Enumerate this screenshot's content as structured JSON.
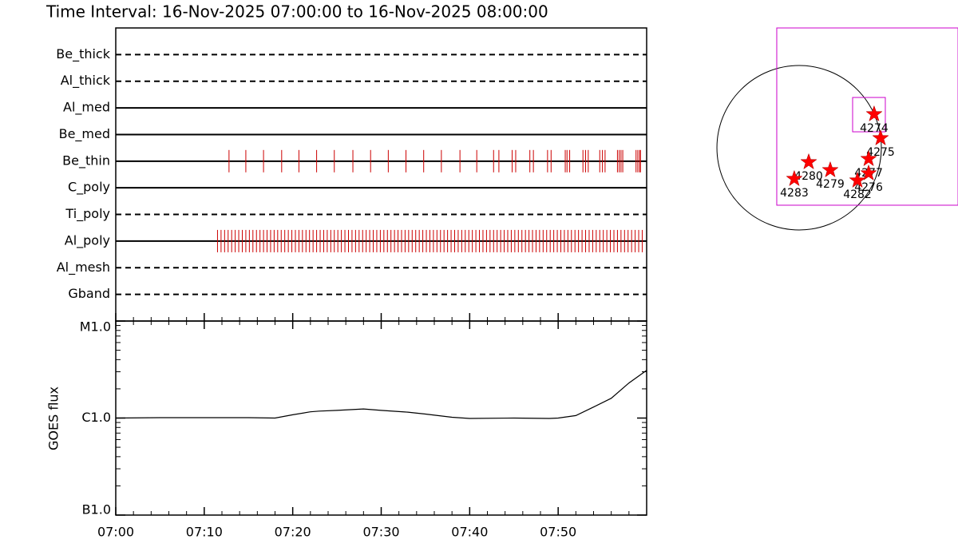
{
  "chart_data": [
    {
      "type": "timeline",
      "title": "Time Interval: 16-Nov-2025 07:00:00 to 16-Nov-2025 08:00:00",
      "xlim": [
        0,
        60
      ],
      "tick_color": "#cc0000",
      "rows": [
        {
          "name": "Be_thick",
          "style": "dashed",
          "times": []
        },
        {
          "name": "Al_thick",
          "style": "dashed",
          "times": []
        },
        {
          "name": "Al_med",
          "style": "solid",
          "times": []
        },
        {
          "name": "Be_med",
          "style": "solid",
          "times": []
        },
        {
          "name": "Be_thin",
          "style": "solid",
          "times": [
            12.8,
            14.7,
            16.7,
            18.75,
            20.7,
            22.7,
            24.7,
            26.8,
            28.8,
            30.8,
            32.8,
            34.8,
            36.8,
            38.9,
            40.8,
            42.7,
            43.3,
            44.8,
            45.2,
            46.8,
            47.2,
            48.8,
            49.2,
            50.8,
            51.0,
            51.3,
            52.8,
            53.1,
            53.4,
            54.7,
            55.0,
            55.3,
            56.7,
            56.9,
            57.1,
            57.3,
            58.8,
            59.0,
            59.2,
            59.3
          ]
        },
        {
          "name": "C_poly",
          "style": "solid",
          "times": []
        },
        {
          "name": "Ti_poly",
          "style": "dashed",
          "times": []
        },
        {
          "name": "Al_poly",
          "style": "solid",
          "times": [
            11.5,
            11.9,
            12.3,
            12.7,
            13.1,
            13.5,
            13.9,
            14.3,
            14.7,
            15.1,
            15.5,
            15.9,
            16.3,
            16.7,
            17.1,
            17.5,
            17.9,
            18.3,
            18.7,
            19.1,
            19.5,
            19.9,
            20.3,
            20.7,
            21.1,
            21.5,
            21.9,
            22.3,
            22.7,
            23.1,
            23.5,
            23.9,
            24.3,
            24.7,
            25.1,
            25.5,
            25.9,
            26.3,
            26.7,
            27.1,
            27.5,
            27.9,
            28.3,
            28.7,
            29.1,
            29.5,
            29.9,
            30.3,
            30.7,
            31.1,
            31.5,
            31.9,
            32.3,
            32.7,
            33.1,
            33.5,
            33.9,
            34.3,
            34.7,
            35.1,
            35.5,
            35.9,
            36.3,
            36.7,
            37.1,
            37.5,
            37.9,
            38.3,
            38.7,
            39.1,
            39.5,
            39.9,
            40.3,
            40.7,
            41.1,
            41.5,
            41.9,
            42.3,
            42.7,
            43.1,
            43.5,
            43.9,
            44.3,
            44.7,
            45.1,
            45.5,
            45.9,
            46.3,
            46.7,
            47.1,
            47.5,
            47.9,
            48.3,
            48.7,
            49.1,
            49.5,
            49.9,
            50.3,
            50.7,
            51.1,
            51.5,
            51.9,
            52.3,
            52.7,
            53.1,
            53.5,
            53.9,
            54.3,
            54.7,
            55.1,
            55.5,
            55.9,
            56.3,
            56.7,
            57.1,
            57.5,
            57.9,
            58.3,
            58.7,
            59.1,
            59.5
          ]
        },
        {
          "name": "Al_mesh",
          "style": "dashed",
          "times": []
        },
        {
          "name": "Gband",
          "style": "dashed",
          "times": []
        }
      ]
    },
    {
      "type": "line",
      "ylabel": "GOES flux",
      "log": true,
      "color": "#000000",
      "xlim": [
        0,
        60
      ],
      "xticks": [
        {
          "value": 0,
          "label": "07:00"
        },
        {
          "value": 10,
          "label": "07:10"
        },
        {
          "value": 20,
          "label": "07:20"
        },
        {
          "value": 30,
          "label": "07:30"
        },
        {
          "value": 40,
          "label": "07:40"
        },
        {
          "value": 50,
          "label": "07:50"
        }
      ],
      "xminorticks": [
        2,
        4,
        6,
        8,
        12,
        14,
        16,
        18,
        22,
        24,
        26,
        28,
        32,
        34,
        36,
        38,
        42,
        44,
        46,
        48,
        52,
        54,
        56,
        58
      ],
      "ylim": [
        1e-07,
        1e-05
      ],
      "yticks": [
        {
          "value": 1e-05,
          "label": "M1.0"
        },
        {
          "value": 1e-06,
          "label": "C1.0"
        },
        {
          "value": 1e-07,
          "label": "B1.0"
        }
      ],
      "yminorticks": [
        2e-07,
        3e-07,
        4e-07,
        5e-07,
        6e-07,
        7e-07,
        8e-07,
        9e-07,
        2e-06,
        3e-06,
        4e-06,
        5e-06,
        6e-06,
        7e-06,
        8e-06,
        9e-06
      ],
      "x": [
        0,
        5,
        10,
        15,
        18,
        20,
        22,
        23,
        25,
        28,
        30,
        33,
        35,
        38,
        40,
        45,
        49,
        50,
        52,
        54,
        56,
        58,
        60
      ],
      "values": [
        1e-06,
        1.01e-06,
        1.01e-06,
        1.01e-06,
        1e-06,
        1.08e-06,
        1.16e-06,
        1.18e-06,
        1.2e-06,
        1.24e-06,
        1.2e-06,
        1.15e-06,
        1.1e-06,
        1.02e-06,
        9.9e-07,
        1e-06,
        9.9e-07,
        1e-06,
        1.06e-06,
        1.3e-06,
        1.6e-06,
        2.3e-06,
        3.1e-06
      ]
    },
    {
      "type": "map",
      "sun_radius": 970,
      "fov_color": "#cc00cc",
      "marker_color": "#ff0000",
      "fov": [
        [
          -264,
          1413,
          1875,
          -678
        ],
        [
          631,
          593,
          1017,
          188
        ]
      ],
      "points": [
        {
          "label": "4274",
          "x": 885,
          "y": 396
        },
        {
          "label": "4275",
          "x": 961,
          "y": 113
        },
        {
          "label": "4277",
          "x": 820,
          "y": -132
        },
        {
          "label": "4276",
          "x": 820,
          "y": -301
        },
        {
          "label": "4282",
          "x": 688,
          "y": -386
        },
        {
          "label": "4279",
          "x": 367,
          "y": -264
        },
        {
          "label": "4280",
          "x": 113,
          "y": -170
        },
        {
          "label": "4283",
          "x": -57,
          "y": -367
        }
      ]
    }
  ]
}
